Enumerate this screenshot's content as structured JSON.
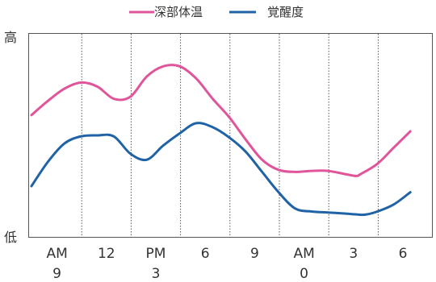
{
  "chart_data": {
    "type": "line",
    "title": "",
    "xlabel": "",
    "ylabel": "",
    "y_high_label": "高",
    "y_low_label": "低",
    "x_tick_labels": [
      {
        "top": "AM",
        "bottom": "9"
      },
      {
        "top": "12",
        "bottom": ""
      },
      {
        "top": "PM",
        "bottom": "3"
      },
      {
        "top": "6",
        "bottom": ""
      },
      {
        "top": "9",
        "bottom": ""
      },
      {
        "top": "AM",
        "bottom": "0"
      },
      {
        "top": "3",
        "bottom": ""
      },
      {
        "top": "6",
        "bottom": ""
      }
    ],
    "x_range": [
      8,
      32
    ],
    "y_range": [
      0,
      100
    ],
    "grid": "vertical dotted",
    "legend_position": "top-center",
    "series": [
      {
        "name": "深部体温",
        "color": "#e0559a",
        "points": [
          [
            8,
            60
          ],
          [
            9,
            67
          ],
          [
            10,
            73
          ],
          [
            11,
            76
          ],
          [
            12,
            74
          ],
          [
            13,
            68
          ],
          [
            14,
            69
          ],
          [
            15,
            79
          ],
          [
            16,
            84
          ],
          [
            17,
            84
          ],
          [
            18,
            78
          ],
          [
            19,
            68
          ],
          [
            20,
            59
          ],
          [
            21,
            48
          ],
          [
            22,
            38
          ],
          [
            23,
            33
          ],
          [
            24,
            32
          ],
          [
            25,
            32.5
          ],
          [
            26,
            32.5
          ],
          [
            27,
            31
          ],
          [
            27.7,
            30
          ],
          [
            28,
            31
          ],
          [
            29,
            36
          ],
          [
            30,
            44
          ],
          [
            31,
            52
          ]
        ]
      },
      {
        "name": "覚醒度",
        "color": "#1f63a6",
        "points": [
          [
            8,
            25
          ],
          [
            9,
            37
          ],
          [
            10,
            46
          ],
          [
            11,
            49.5
          ],
          [
            12,
            50
          ],
          [
            13,
            49.5
          ],
          [
            14,
            41
          ],
          [
            15,
            38
          ],
          [
            16,
            45
          ],
          [
            17,
            51
          ],
          [
            18,
            56
          ],
          [
            19,
            54
          ],
          [
            20,
            49
          ],
          [
            21,
            42
          ],
          [
            22,
            32
          ],
          [
            23,
            22
          ],
          [
            24,
            14
          ],
          [
            25,
            12.5
          ],
          [
            26,
            12
          ],
          [
            27,
            11.5
          ],
          [
            27.8,
            11
          ],
          [
            28.3,
            11
          ],
          [
            29,
            12.5
          ],
          [
            30,
            16
          ],
          [
            31,
            22
          ]
        ]
      }
    ]
  }
}
